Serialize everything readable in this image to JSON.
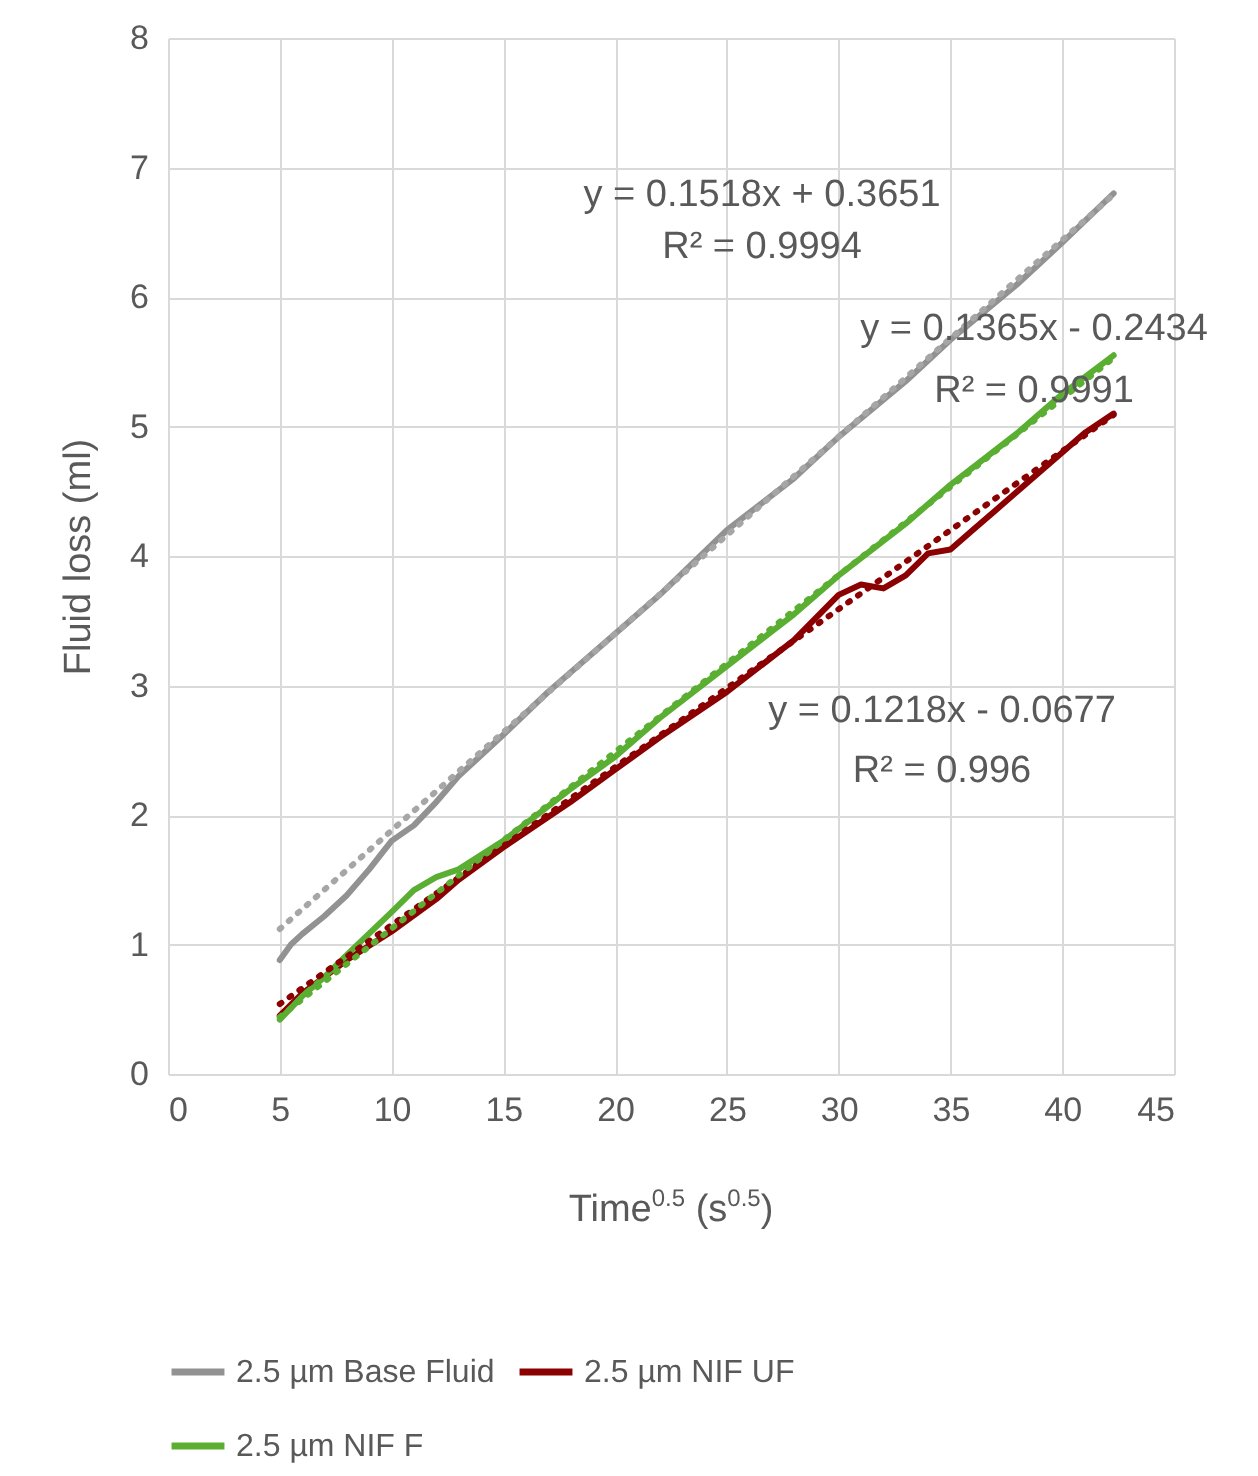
{
  "chart_data": {
    "type": "line",
    "xlabel": "Time$^{0.5}$ (s$^{0.5}$)",
    "ylabel": "Fluid loss (ml)",
    "xlim": [
      0,
      45
    ],
    "xticks": [
      0,
      5,
      10,
      15,
      20,
      25,
      30,
      35,
      40,
      45
    ],
    "ylim": [
      0,
      8
    ],
    "yticks": [
      0,
      1,
      2,
      3,
      4,
      5,
      6,
      7,
      8
    ],
    "grid": true,
    "legend": "bottom",
    "series": [
      {
        "name": "2.5 µm Base Fluid",
        "color": "#929292",
        "x": [
          5,
          5.5,
          6,
          7,
          8,
          9,
          10,
          11,
          12,
          13,
          15,
          17,
          20,
          22,
          25,
          28,
          30,
          33,
          35,
          38,
          40,
          42.3
        ],
        "values": [
          0.88,
          1.0,
          1.08,
          1.22,
          1.38,
          1.58,
          1.8,
          1.92,
          2.1,
          2.3,
          2.62,
          2.95,
          3.4,
          3.7,
          4.2,
          4.6,
          4.92,
          5.35,
          5.67,
          6.1,
          6.42,
          6.8
        ]
      },
      {
        "name": "2.5 µm NIF UF",
        "color": "#8b0000",
        "x": [
          5,
          6,
          7,
          8,
          10,
          12,
          13,
          15,
          18,
          20,
          22,
          25,
          28,
          30,
          31,
          32,
          33,
          34,
          35,
          36,
          37,
          38,
          40,
          41,
          42.3
        ],
        "values": [
          0.45,
          0.62,
          0.75,
          0.88,
          1.1,
          1.35,
          1.5,
          1.75,
          2.1,
          2.35,
          2.6,
          2.95,
          3.35,
          3.7,
          3.78,
          3.75,
          3.85,
          4.02,
          4.05,
          4.2,
          4.35,
          4.5,
          4.8,
          4.95,
          5.1
        ]
      },
      {
        "name": "2.5 µm NIF F",
        "color": "#5aaf32",
        "x": [
          5,
          6,
          7,
          8,
          10,
          11,
          12,
          13,
          15,
          18,
          20,
          22,
          25,
          28,
          30,
          33,
          35,
          38,
          40,
          42.3
        ],
        "values": [
          0.42,
          0.6,
          0.75,
          0.92,
          1.25,
          1.42,
          1.52,
          1.58,
          1.8,
          2.2,
          2.45,
          2.75,
          3.15,
          3.55,
          3.85,
          4.25,
          4.55,
          4.95,
          5.25,
          5.55
        ]
      },
      {
        "type": "line",
        "line_style": "dotted",
        "color": "#a6a6a6",
        "x": [
          5,
          42.3
        ],
        "values": [
          1.12,
          6.79
        ]
      },
      {
        "type": "line",
        "line_style": "dotted",
        "color": "#8b0000",
        "x": [
          5,
          42.3
        ],
        "values": [
          0.54,
          5.09
        ]
      },
      {
        "type": "line",
        "line_style": "dotted",
        "color": "#5aaf32",
        "x": [
          5,
          42.3
        ],
        "values": [
          0.44,
          5.53
        ]
      }
    ],
    "annotations": [
      "y = 0.1518x + 0.3651",
      "R² = 0.9994",
      "y = 0.1365x - 0.2434",
      "R² = 0.9991",
      "y = 0.1218x - 0.0677",
      "R² = 0.996"
    ]
  }
}
